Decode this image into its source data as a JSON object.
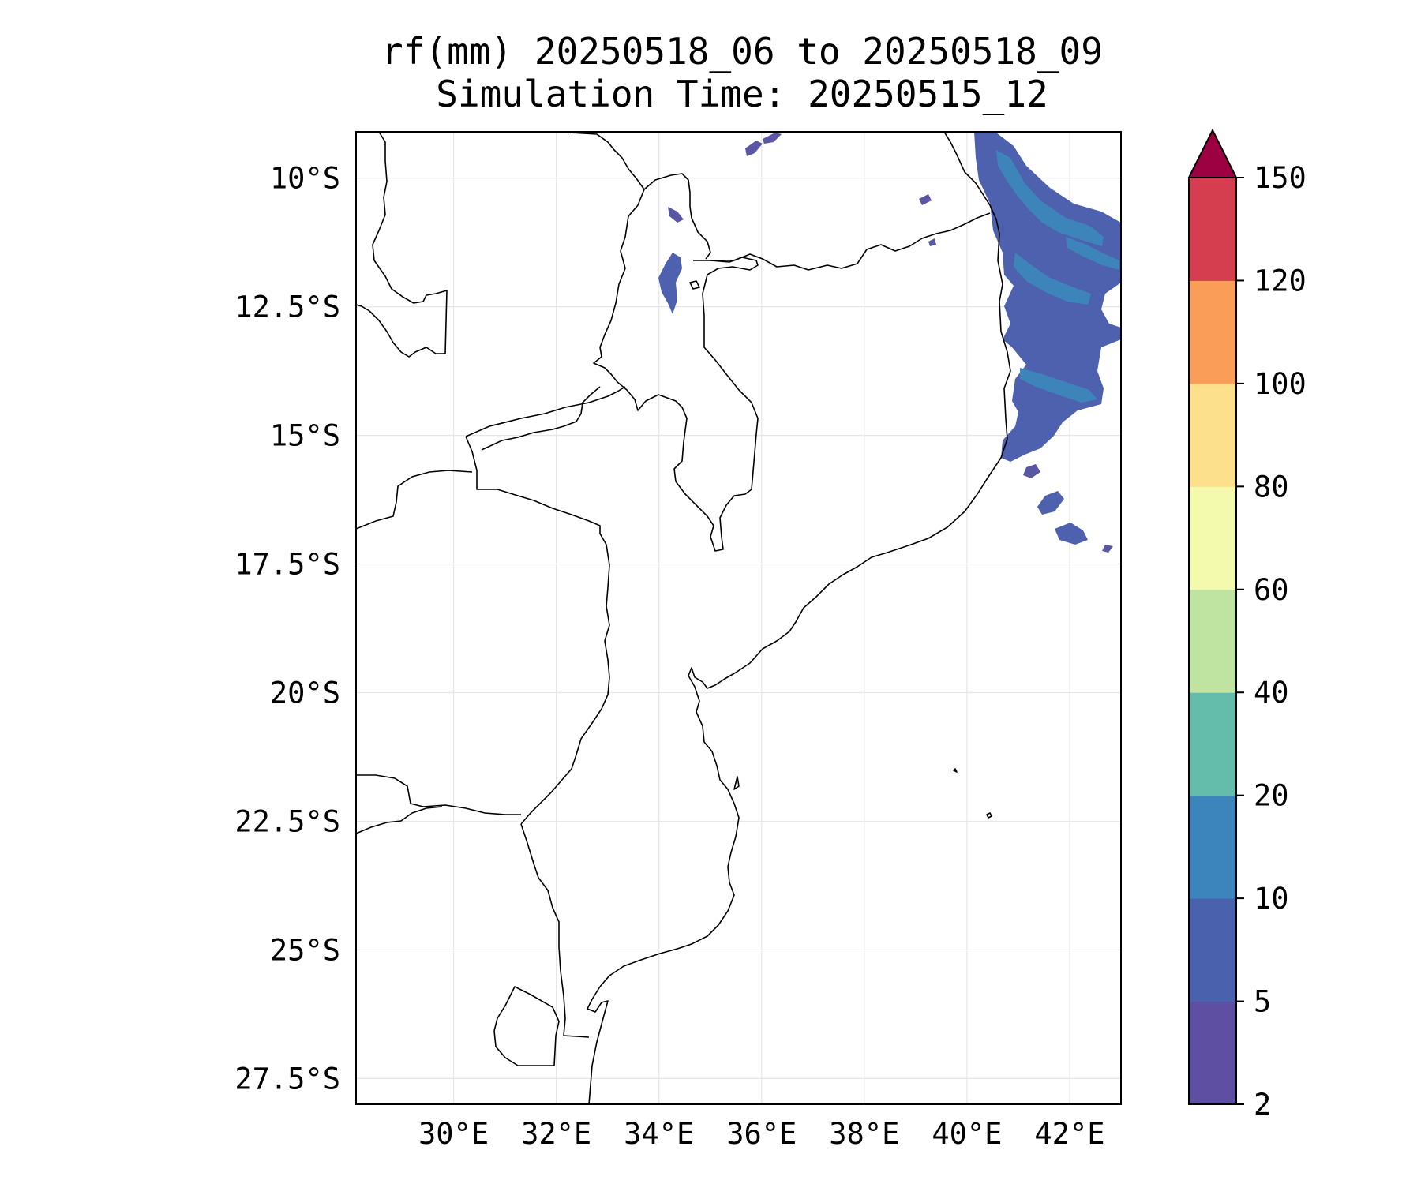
{
  "title": {
    "line1": "rf(mm) 20250518_06 to 20250518_09",
    "line2": "Simulation Time: 20250515_12"
  },
  "map": {
    "lon_range": [
      28.1,
      43.0
    ],
    "lat_range": [
      -28.0,
      -9.1
    ],
    "lon_ticks": [
      {
        "value": 30,
        "label": "30°E"
      },
      {
        "value": 32,
        "label": "32°E"
      },
      {
        "value": 34,
        "label": "34°E"
      },
      {
        "value": 36,
        "label": "36°E"
      },
      {
        "value": 38,
        "label": "38°E"
      },
      {
        "value": 40,
        "label": "40°E"
      },
      {
        "value": 42,
        "label": "42°E"
      }
    ],
    "lat_ticks": [
      {
        "value": -10,
        "label": "10°S"
      },
      {
        "value": -12.5,
        "label": "12.5°S"
      },
      {
        "value": -15,
        "label": "15°S"
      },
      {
        "value": -17.5,
        "label": "17.5°S"
      },
      {
        "value": -20,
        "label": "20°S"
      },
      {
        "value": -22.5,
        "label": "22.5°S"
      },
      {
        "value": -25,
        "label": "25°S"
      },
      {
        "value": -27.5,
        "label": "27.5°S"
      }
    ],
    "grid": true
  },
  "colorbar": {
    "levels": [
      "2",
      "5",
      "10",
      "20",
      "40",
      "60",
      "80",
      "100",
      "120",
      "150"
    ],
    "colors": [
      "#5e4fa2",
      "#4a62ad",
      "#3b84bc",
      "#64bdab",
      "#bfe4a2",
      "#f4faad",
      "#fde08b",
      "#f99d59",
      "#d53e4f"
    ],
    "extend_color": "#9e0142",
    "extend": "max"
  }
}
